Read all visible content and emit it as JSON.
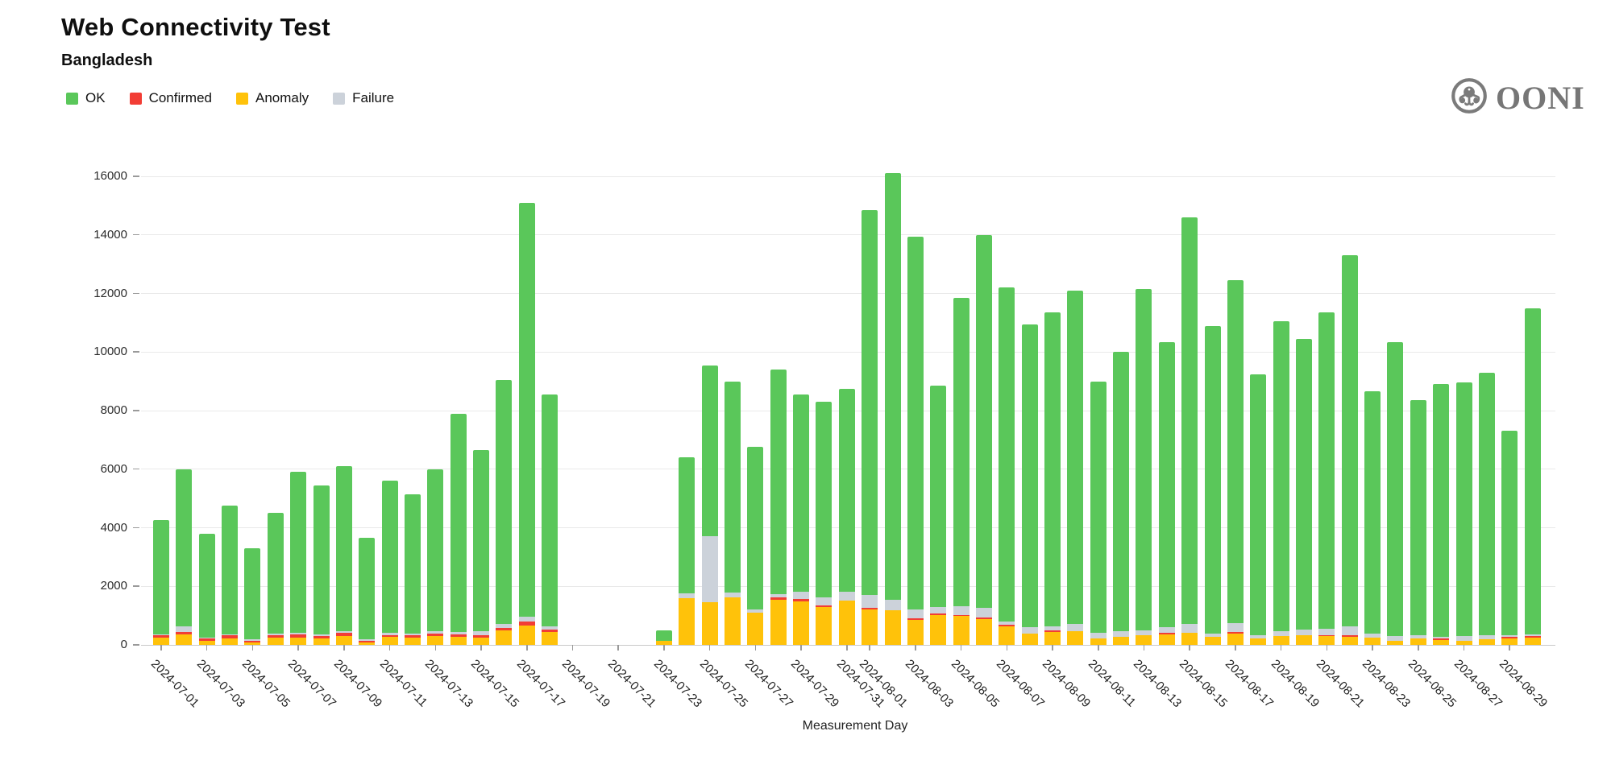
{
  "header": {
    "title": "Web Connectivity Test",
    "subtitle": "Bangladesh",
    "brand": "OONI"
  },
  "chart_data": {
    "type": "bar",
    "stacked": true,
    "title": "Web Connectivity Test",
    "subtitle": "Bangladesh",
    "xlabel": "Measurement Day",
    "ylim": [
      0,
      16000
    ],
    "y_ticks": [
      0,
      2000,
      4000,
      6000,
      8000,
      10000,
      12000,
      14000,
      16000
    ],
    "grid": "horizontal",
    "legend_position": "top-left",
    "legend": [
      {
        "key": "ok",
        "label": "OK",
        "color": "#5ac75a"
      },
      {
        "key": "confirmed",
        "label": "Confirmed",
        "color": "#f23d35"
      },
      {
        "key": "anomaly",
        "label": "Anomaly",
        "color": "#ffc20a"
      },
      {
        "key": "failure",
        "label": "Failure",
        "color": "#ccd2da"
      }
    ],
    "stack_order_bottom_to_top": [
      "anomaly",
      "confirmed",
      "failure",
      "ok"
    ],
    "x_ticks": [
      {
        "idx": 0,
        "label": "2024-07-01"
      },
      {
        "idx": 2,
        "label": "2024-07-03"
      },
      {
        "idx": 4,
        "label": "2024-07-05"
      },
      {
        "idx": 6,
        "label": "2024-07-07"
      },
      {
        "idx": 8,
        "label": "2024-07-09"
      },
      {
        "idx": 10,
        "label": "2024-07-11"
      },
      {
        "idx": 12,
        "label": "2024-07-13"
      },
      {
        "idx": 14,
        "label": "2024-07-15"
      },
      {
        "idx": 16,
        "label": "2024-07-17"
      },
      {
        "idx": 18,
        "label": "2024-07-19"
      },
      {
        "idx": 20,
        "label": "2024-07-21"
      },
      {
        "idx": 22,
        "label": "2024-07-23"
      },
      {
        "idx": 24,
        "label": "2024-07-25"
      },
      {
        "idx": 26,
        "label": "2024-07-27"
      },
      {
        "idx": 28,
        "label": "2024-07-29"
      },
      {
        "idx": 30,
        "label": "2024-07-31"
      },
      {
        "idx": 31,
        "label": "2024-08-01"
      },
      {
        "idx": 33,
        "label": "2024-08-03"
      },
      {
        "idx": 35,
        "label": "2024-08-05"
      },
      {
        "idx": 37,
        "label": "2024-08-07"
      },
      {
        "idx": 39,
        "label": "2024-08-09"
      },
      {
        "idx": 41,
        "label": "2024-08-11"
      },
      {
        "idx": 43,
        "label": "2024-08-13"
      },
      {
        "idx": 45,
        "label": "2024-08-15"
      },
      {
        "idx": 47,
        "label": "2024-08-17"
      },
      {
        "idx": 49,
        "label": "2024-08-19"
      },
      {
        "idx": 51,
        "label": "2024-08-21"
      },
      {
        "idx": 53,
        "label": "2024-08-23"
      },
      {
        "idx": 55,
        "label": "2024-08-25"
      },
      {
        "idx": 57,
        "label": "2024-08-27"
      },
      {
        "idx": 59,
        "label": "2024-08-29"
      }
    ],
    "bars": [
      {
        "date": "2024-07-01",
        "idx": 0,
        "ok": 3880,
        "confirmed": 80,
        "anomaly": 250,
        "failure": 40
      },
      {
        "date": "2024-07-02",
        "idx": 1,
        "ok": 5360,
        "confirmed": 90,
        "anomaly": 360,
        "failure": 190
      },
      {
        "date": "2024-07-03",
        "idx": 2,
        "ok": 3550,
        "confirmed": 60,
        "anomaly": 150,
        "failure": 40
      },
      {
        "date": "2024-07-04",
        "idx": 3,
        "ok": 4380,
        "confirmed": 90,
        "anomaly": 230,
        "failure": 50
      },
      {
        "date": "2024-07-05",
        "idx": 4,
        "ok": 3120,
        "confirmed": 60,
        "anomaly": 90,
        "failure": 30
      },
      {
        "date": "2024-07-06",
        "idx": 5,
        "ok": 4110,
        "confirmed": 80,
        "anomaly": 250,
        "failure": 60
      },
      {
        "date": "2024-07-07",
        "idx": 6,
        "ok": 5490,
        "confirmed": 90,
        "anomaly": 260,
        "failure": 60
      },
      {
        "date": "2024-07-08",
        "idx": 7,
        "ok": 5080,
        "confirmed": 70,
        "anomaly": 230,
        "failure": 70
      },
      {
        "date": "2024-07-09",
        "idx": 8,
        "ok": 5640,
        "confirmed": 100,
        "anomaly": 300,
        "failure": 60
      },
      {
        "date": "2024-07-10",
        "idx": 9,
        "ok": 3460,
        "confirmed": 60,
        "anomaly": 90,
        "failure": 40
      },
      {
        "date": "2024-07-11",
        "idx": 10,
        "ok": 5190,
        "confirmed": 60,
        "anomaly": 280,
        "failure": 70
      },
      {
        "date": "2024-07-12",
        "idx": 11,
        "ok": 4770,
        "confirmed": 70,
        "anomaly": 250,
        "failure": 60
      },
      {
        "date": "2024-07-13",
        "idx": 12,
        "ok": 5540,
        "confirmed": 90,
        "anomaly": 300,
        "failure": 70
      },
      {
        "date": "2024-07-14",
        "idx": 13,
        "ok": 7450,
        "confirmed": 90,
        "anomaly": 280,
        "failure": 80
      },
      {
        "date": "2024-07-15",
        "idx": 14,
        "ok": 6170,
        "confirmed": 80,
        "anomaly": 250,
        "failure": 150
      },
      {
        "date": "2024-07-16",
        "idx": 15,
        "ok": 8340,
        "confirmed": 70,
        "anomaly": 500,
        "failure": 140
      },
      {
        "date": "2024-07-17",
        "idx": 16,
        "ok": 14150,
        "confirmed": 150,
        "anomaly": 650,
        "failure": 150
      },
      {
        "date": "2024-07-18",
        "idx": 17,
        "ok": 7930,
        "confirmed": 80,
        "anomaly": 450,
        "failure": 90
      },
      {
        "date": "2024-07-23",
        "idx": 22,
        "ok": 350,
        "confirmed": 0,
        "anomaly": 150,
        "failure": 0
      },
      {
        "date": "2024-07-24",
        "idx": 23,
        "ok": 4640,
        "confirmed": 0,
        "anomaly": 1600,
        "failure": 160
      },
      {
        "date": "2024-07-25",
        "idx": 24,
        "ok": 5850,
        "confirmed": 0,
        "anomaly": 1460,
        "failure": 2240
      },
      {
        "date": "2024-07-26",
        "idx": 25,
        "ok": 7210,
        "confirmed": 0,
        "anomaly": 1630,
        "failure": 160
      },
      {
        "date": "2024-07-27",
        "idx": 26,
        "ok": 5540,
        "confirmed": 0,
        "anomaly": 1090,
        "failure": 120
      },
      {
        "date": "2024-07-28",
        "idx": 27,
        "ok": 7660,
        "confirmed": 60,
        "anomaly": 1550,
        "failure": 130
      },
      {
        "date": "2024-07-29",
        "idx": 28,
        "ok": 6730,
        "confirmed": 70,
        "anomaly": 1490,
        "failure": 260
      },
      {
        "date": "2024-07-30",
        "idx": 29,
        "ok": 6670,
        "confirmed": 50,
        "anomaly": 1300,
        "failure": 280
      },
      {
        "date": "2024-07-31",
        "idx": 30,
        "ok": 6930,
        "confirmed": 0,
        "anomaly": 1520,
        "failure": 300
      },
      {
        "date": "2024-08-01",
        "idx": 31,
        "ok": 13140,
        "confirmed": 50,
        "anomaly": 1210,
        "failure": 450
      },
      {
        "date": "2024-08-02",
        "idx": 32,
        "ok": 14550,
        "confirmed": 0,
        "anomaly": 1180,
        "failure": 370
      },
      {
        "date": "2024-08-03",
        "idx": 33,
        "ok": 12730,
        "confirmed": 50,
        "anomaly": 860,
        "failure": 310
      },
      {
        "date": "2024-08-04",
        "idx": 34,
        "ok": 7550,
        "confirmed": 50,
        "anomaly": 1020,
        "failure": 230
      },
      {
        "date": "2024-08-05",
        "idx": 35,
        "ok": 10520,
        "confirmed": 50,
        "anomaly": 980,
        "failure": 300
      },
      {
        "date": "2024-08-06",
        "idx": 36,
        "ok": 12740,
        "confirmed": 50,
        "anomaly": 880,
        "failure": 330
      },
      {
        "date": "2024-08-07",
        "idx": 37,
        "ok": 11410,
        "confirmed": 50,
        "anomaly": 630,
        "failure": 110
      },
      {
        "date": "2024-08-08",
        "idx": 38,
        "ok": 10350,
        "confirmed": 0,
        "anomaly": 390,
        "failure": 210
      },
      {
        "date": "2024-08-09",
        "idx": 39,
        "ok": 10720,
        "confirmed": 60,
        "anomaly": 440,
        "failure": 130
      },
      {
        "date": "2024-08-10",
        "idx": 40,
        "ok": 11390,
        "confirmed": 0,
        "anomaly": 480,
        "failure": 230
      },
      {
        "date": "2024-08-11",
        "idx": 41,
        "ok": 8580,
        "confirmed": 0,
        "anomaly": 230,
        "failure": 190
      },
      {
        "date": "2024-08-12",
        "idx": 42,
        "ok": 9530,
        "confirmed": 0,
        "anomaly": 280,
        "failure": 190
      },
      {
        "date": "2024-08-13",
        "idx": 43,
        "ok": 11660,
        "confirmed": 0,
        "anomaly": 320,
        "failure": 170
      },
      {
        "date": "2024-08-14",
        "idx": 44,
        "ok": 9740,
        "confirmed": 50,
        "anomaly": 360,
        "failure": 200
      },
      {
        "date": "2024-08-15",
        "idx": 45,
        "ok": 13880,
        "confirmed": 0,
        "anomaly": 410,
        "failure": 310
      },
      {
        "date": "2024-08-16",
        "idx": 46,
        "ok": 10510,
        "confirmed": 0,
        "anomaly": 270,
        "failure": 120
      },
      {
        "date": "2024-08-17",
        "idx": 47,
        "ok": 11720,
        "confirmed": 50,
        "anomaly": 390,
        "failure": 290
      },
      {
        "date": "2024-08-18",
        "idx": 48,
        "ok": 8910,
        "confirmed": 0,
        "anomaly": 210,
        "failure": 130
      },
      {
        "date": "2024-08-19",
        "idx": 49,
        "ok": 10590,
        "confirmed": 0,
        "anomaly": 290,
        "failure": 170
      },
      {
        "date": "2024-08-20",
        "idx": 50,
        "ok": 9930,
        "confirmed": 0,
        "anomaly": 320,
        "failure": 200
      },
      {
        "date": "2024-08-21",
        "idx": 51,
        "ok": 10810,
        "confirmed": 50,
        "anomaly": 290,
        "failure": 200
      },
      {
        "date": "2024-08-22",
        "idx": 52,
        "ok": 12680,
        "confirmed": 50,
        "anomaly": 270,
        "failure": 300
      },
      {
        "date": "2024-08-23",
        "idx": 53,
        "ok": 8260,
        "confirmed": 0,
        "anomaly": 240,
        "failure": 150
      },
      {
        "date": "2024-08-24",
        "idx": 54,
        "ok": 10050,
        "confirmed": 0,
        "anomaly": 150,
        "failure": 150
      },
      {
        "date": "2024-08-25",
        "idx": 55,
        "ok": 8010,
        "confirmed": 0,
        "anomaly": 210,
        "failure": 130
      },
      {
        "date": "2024-08-26",
        "idx": 56,
        "ok": 8630,
        "confirmed": 50,
        "anomaly": 170,
        "failure": 50
      },
      {
        "date": "2024-08-27",
        "idx": 57,
        "ok": 8650,
        "confirmed": 0,
        "anomaly": 150,
        "failure": 150
      },
      {
        "date": "2024-08-28",
        "idx": 58,
        "ok": 8980,
        "confirmed": 0,
        "anomaly": 200,
        "failure": 120
      },
      {
        "date": "2024-08-29",
        "idx": 59,
        "ok": 6960,
        "confirmed": 60,
        "anomaly": 210,
        "failure": 70
      },
      {
        "date": "2024-08-30",
        "idx": 60,
        "ok": 11130,
        "confirmed": 60,
        "anomaly": 250,
        "failure": 60
      }
    ]
  }
}
